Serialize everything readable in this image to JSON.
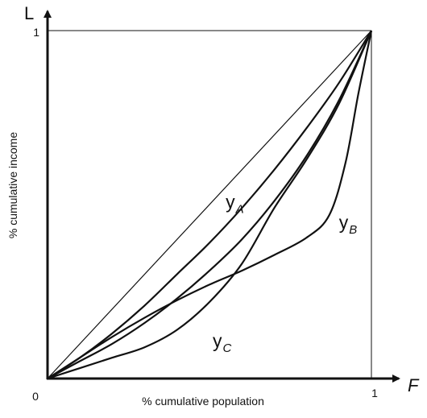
{
  "chart_data": {
    "type": "line",
    "title": "",
    "xlabel": "% cumulative population",
    "ylabel": "% cumulative income",
    "x_axis_letter": "F",
    "y_axis_letter": "L",
    "xlim": [
      0,
      1
    ],
    "ylim": [
      0,
      1
    ],
    "origin_label": "0",
    "x_ticks": [
      {
        "value": 1,
        "label": "1"
      }
    ],
    "y_ticks": [
      {
        "value": 1,
        "label": "1"
      }
    ],
    "grid": false,
    "legend": "none",
    "colors": {
      "line": "#111111",
      "background": "#ffffff"
    },
    "series": [
      {
        "id": "equality",
        "x": [
          0,
          1
        ],
        "y": [
          0,
          1
        ]
      },
      {
        "id": "yA",
        "label": "y",
        "subscript": "A",
        "label_at": [
          0.55,
          0.49
        ],
        "x": [
          0,
          0.1,
          0.2,
          0.3,
          0.4,
          0.5,
          0.6,
          0.7,
          0.8,
          0.9,
          1
        ],
        "y": [
          0,
          0.06,
          0.13,
          0.21,
          0.3,
          0.39,
          0.49,
          0.6,
          0.72,
          0.85,
          1
        ]
      },
      {
        "id": "yB",
        "label": "y",
        "subscript": "B",
        "label_at": [
          0.9,
          0.43
        ],
        "x": [
          0,
          0.1,
          0.2,
          0.3,
          0.4,
          0.5,
          0.6,
          0.7,
          0.8,
          0.87,
          0.92,
          0.96,
          1
        ],
        "y": [
          0,
          0.06,
          0.12,
          0.175,
          0.225,
          0.27,
          0.31,
          0.355,
          0.405,
          0.47,
          0.62,
          0.82,
          1
        ]
      },
      {
        "id": "yC",
        "label": "y",
        "subscript": "C",
        "label_at": [
          0.51,
          0.09
        ],
        "x": [
          0,
          0.1,
          0.2,
          0.3,
          0.4,
          0.5,
          0.6,
          0.7,
          0.8,
          0.9,
          1
        ],
        "y": [
          0,
          0.03,
          0.06,
          0.09,
          0.14,
          0.22,
          0.33,
          0.49,
          0.63,
          0.79,
          1
        ]
      },
      {
        "id": "middle",
        "x": [
          0,
          0.1,
          0.2,
          0.3,
          0.4,
          0.5,
          0.6,
          0.7,
          0.8,
          0.9,
          1
        ],
        "y": [
          0,
          0.05,
          0.1,
          0.16,
          0.23,
          0.31,
          0.4,
          0.51,
          0.64,
          0.8,
          1
        ]
      }
    ]
  }
}
